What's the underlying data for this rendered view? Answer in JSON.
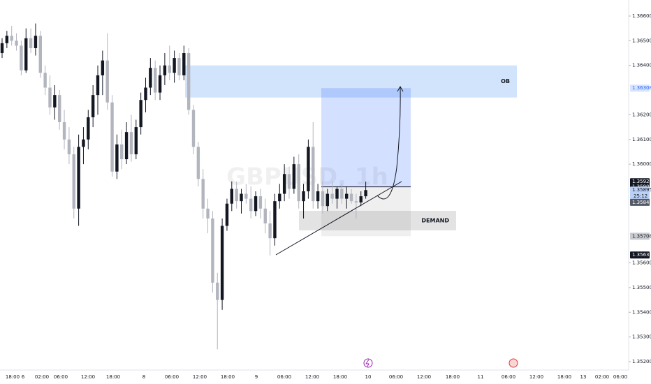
{
  "chart_data": {
    "type": "candlestick",
    "watermark": "GBPUSD, 1h",
    "up_color": "#131722",
    "down_color": "#b2b5be",
    "ylim": [
      1.35166,
      1.36665
    ],
    "yticks": [
      {
        "value": 1.366,
        "label": "1.36600"
      },
      {
        "value": 1.365,
        "label": "1.36500"
      },
      {
        "value": 1.364,
        "label": "1.36400"
      },
      {
        "value": 1.362,
        "label": "1.36200"
      },
      {
        "value": 1.361,
        "label": "1.36100"
      },
      {
        "value": 1.36,
        "label": "1.36000"
      },
      {
        "value": 1.356,
        "label": "1.35600"
      },
      {
        "value": 1.355,
        "label": "1.35500"
      },
      {
        "value": 1.354,
        "label": "1.35400"
      },
      {
        "value": 1.353,
        "label": "1.35300"
      },
      {
        "value": 1.352,
        "label": "1.35200"
      }
    ],
    "xticks": [
      "18:00",
      "6",
      "02:00",
      "06:00",
      "12:00",
      "18:00",
      "8",
      "06:00",
      "12:00",
      "18:00",
      "9",
      "06:00",
      "12:00",
      "18:00",
      "10",
      "06:00",
      "12:00",
      "18:00",
      "11",
      "06:00",
      "12:00",
      "18:00",
      "13",
      "02:00",
      "06:00"
    ],
    "price_tags": [
      {
        "value": 1.36308,
        "color": "#2962ff",
        "background": "#d6e4fd"
      },
      {
        "value": 1.35929,
        "color": "#ffffff",
        "background": "#131722"
      },
      {
        "value": 1.35908,
        "color": "#ffffff",
        "background": "#131722"
      },
      {
        "value": 1.35895,
        "color": "#131722",
        "background": "#bbd0f5"
      },
      {
        "value": 1.35845,
        "color": "#ffffff",
        "background": "#555a66"
      },
      {
        "value": 1.35708,
        "color": "#131722",
        "background": "#c8cad0"
      },
      {
        "value": 1.35632,
        "color": "#ffffff",
        "background": "#131722"
      }
    ],
    "countdown": "25:12",
    "zones": [
      {
        "label": "OB",
        "top": 1.364,
        "bottom": 1.3627,
        "color": "#d2e3fc"
      },
      {
        "label": "DEMAND",
        "top": 1.35811,
        "bottom": 1.35732,
        "color": "#e3e3e3"
      }
    ],
    "open": [
      1.3645,
      1.3649,
      1.3652,
      1.365,
      1.3648,
      1.3638,
      1.3651,
      1.3647,
      1.3652,
      1.3637,
      1.3631,
      1.3623,
      1.3628,
      1.3617,
      1.361,
      1.3604,
      1.3582,
      1.3607,
      1.361,
      1.3619,
      1.3628,
      1.3636,
      1.3642,
      1.3625,
      1.3597,
      1.3608,
      1.3602,
      1.3613,
      1.3604,
      1.3615,
      1.3626,
      1.3631,
      1.3639,
      1.3629,
      1.3636,
      1.364,
      1.3637,
      1.3643,
      1.3636,
      1.3645,
      1.3622,
      1.3607,
      1.3594,
      1.3582,
      1.3578,
      1.3552,
      1.3545,
      1.3575,
      1.3584,
      1.359,
      1.3585,
      1.3588,
      1.3586,
      1.3581,
      1.3587,
      1.3582,
      1.3576,
      1.357,
      1.3585,
      1.3588,
      1.3596,
      1.359,
      1.36,
      1.3585,
      1.3589,
      1.3607,
      1.3585,
      1.3589,
      1.3583,
      1.3588,
      1.3586,
      1.359,
      1.3586,
      1.3588,
      1.3585,
      1.35845,
      1.3587
    ],
    "high": [
      1.3651,
      1.3654,
      1.3656,
      1.3653,
      1.365,
      1.3655,
      1.3655,
      1.3657,
      1.3654,
      1.364,
      1.3636,
      1.3632,
      1.363,
      1.3622,
      1.3615,
      1.3607,
      1.3612,
      1.3615,
      1.3622,
      1.3632,
      1.364,
      1.3646,
      1.3653,
      1.3628,
      1.3612,
      1.3614,
      1.3617,
      1.362,
      1.3618,
      1.3629,
      1.3635,
      1.3643,
      1.3642,
      1.364,
      1.3645,
      1.3648,
      1.3646,
      1.3645,
      1.3648,
      1.3647,
      1.3624,
      1.3609,
      1.3598,
      1.3586,
      1.3581,
      1.3556,
      1.3578,
      1.3586,
      1.3593,
      1.3593,
      1.359,
      1.3592,
      1.3591,
      1.3589,
      1.359,
      1.3586,
      1.3581,
      1.3588,
      1.3592,
      1.36,
      1.3599,
      1.3603,
      1.3604,
      1.3592,
      1.361,
      1.3617,
      1.3592,
      1.3593,
      1.359,
      1.3593,
      1.3591,
      1.3592,
      1.3591,
      1.359,
      1.3588,
      1.3589,
      1.35929
    ],
    "low": [
      1.3643,
      1.3647,
      1.3648,
      1.3646,
      1.3636,
      1.3637,
      1.3645,
      1.3644,
      1.3635,
      1.3628,
      1.362,
      1.3618,
      1.3614,
      1.3606,
      1.36,
      1.3578,
      1.3575,
      1.36,
      1.3606,
      1.3615,
      1.362,
      1.3628,
      1.3622,
      1.3595,
      1.3594,
      1.3598,
      1.36,
      1.3601,
      1.3602,
      1.3612,
      1.3621,
      1.3628,
      1.3626,
      1.3626,
      1.3632,
      1.3634,
      1.3633,
      1.3634,
      1.3634,
      1.362,
      1.3604,
      1.3591,
      1.3578,
      1.3572,
      1.3548,
      1.3525,
      1.3541,
      1.3573,
      1.3581,
      1.3582,
      1.358,
      1.3584,
      1.3578,
      1.3579,
      1.3578,
      1.3572,
      1.3563,
      1.3567,
      1.3582,
      1.3585,
      1.3586,
      1.3588,
      1.3582,
      1.3578,
      1.3586,
      1.3582,
      1.3582,
      1.358,
      1.3581,
      1.3584,
      1.3582,
      1.3584,
      1.3582,
      1.3584,
      1.3578,
      1.3583,
      1.3586
    ],
    "close": [
      1.3649,
      1.3652,
      1.365,
      1.3648,
      1.3638,
      1.3651,
      1.3647,
      1.3652,
      1.3637,
      1.3631,
      1.3623,
      1.3628,
      1.3617,
      1.361,
      1.3604,
      1.3582,
      1.3607,
      1.361,
      1.3619,
      1.3628,
      1.3636,
      1.3642,
      1.3625,
      1.3597,
      1.3608,
      1.3602,
      1.3613,
      1.3604,
      1.3615,
      1.3626,
      1.3631,
      1.3639,
      1.3629,
      1.3636,
      1.364,
      1.3637,
      1.3643,
      1.3636,
      1.3645,
      1.3622,
      1.3607,
      1.3594,
      1.3582,
      1.3578,
      1.3552,
      1.3545,
      1.3575,
      1.3584,
      1.359,
      1.3585,
      1.3588,
      1.3586,
      1.3581,
      1.3587,
      1.3582,
      1.3576,
      1.357,
      1.3585,
      1.3588,
      1.3596,
      1.359,
      1.36,
      1.3585,
      1.3589,
      1.3607,
      1.3585,
      1.3589,
      1.3583,
      1.3588,
      1.3586,
      1.359,
      1.3586,
      1.3588,
      1.3585,
      1.35845,
      1.3587,
      1.35895
    ]
  }
}
